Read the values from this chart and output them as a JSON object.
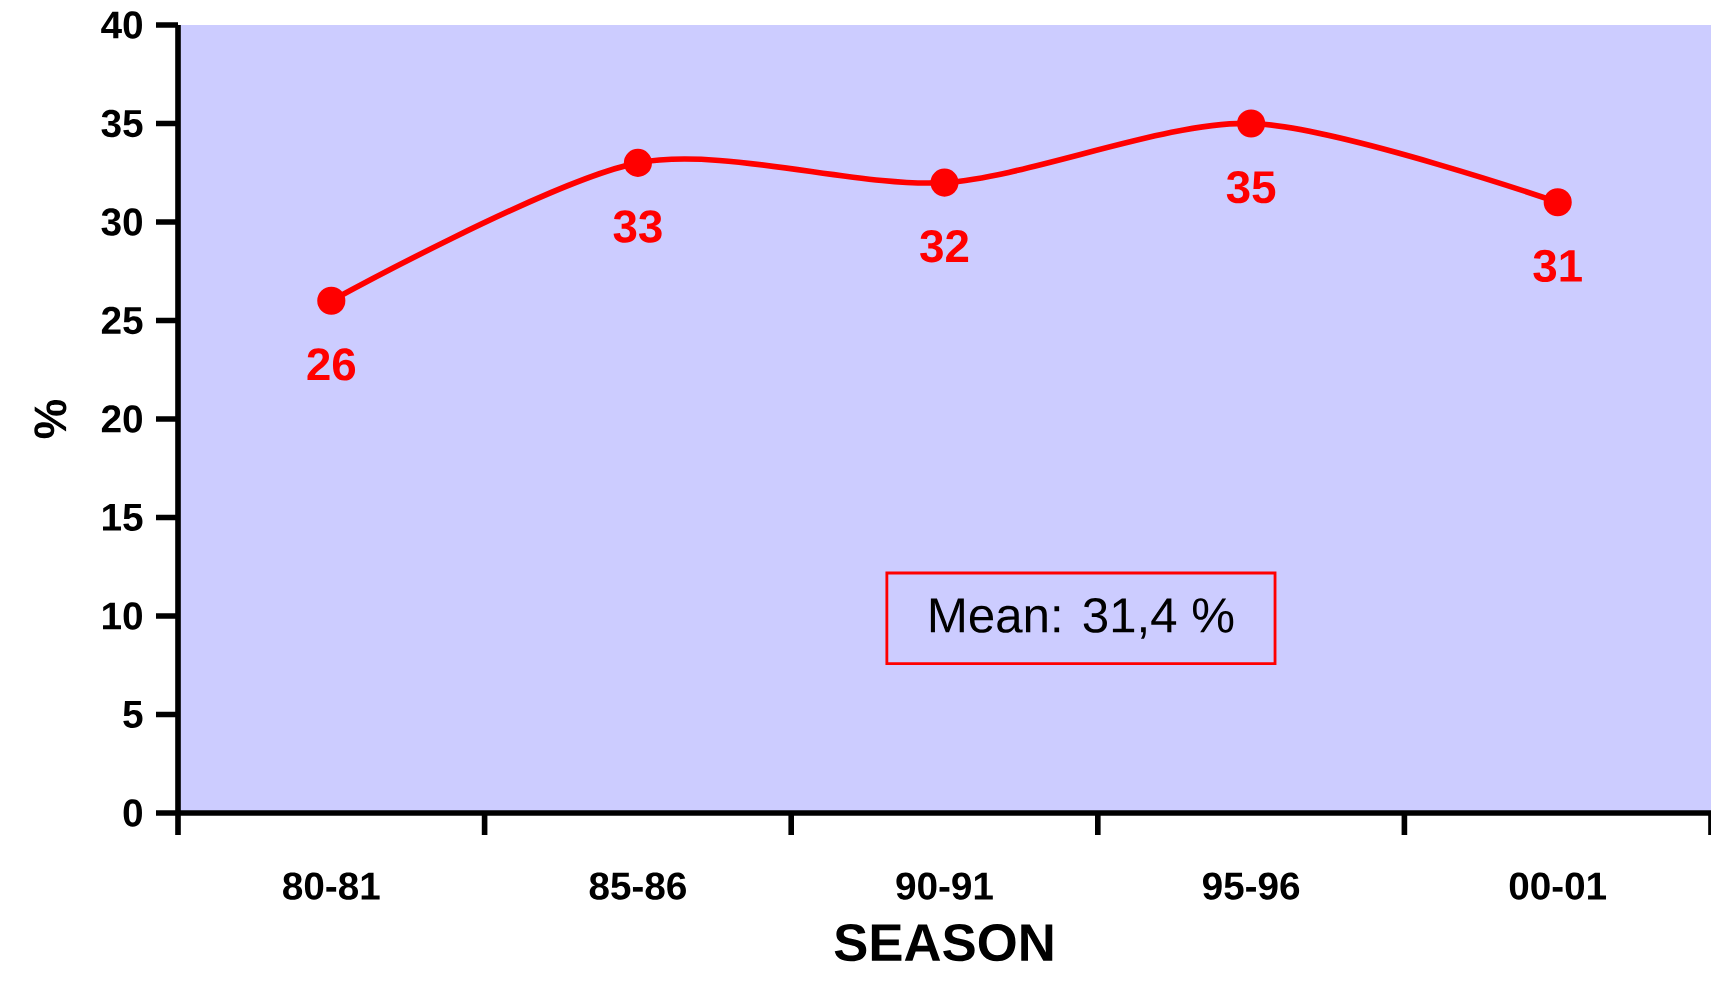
{
  "chart_data": {
    "type": "line",
    "xlabel": "SEASON",
    "ylabel": "%",
    "categories": [
      "80-81",
      "85-86",
      "90-91",
      "95-96",
      "00-01"
    ],
    "values": [
      26,
      33,
      32,
      35,
      31
    ],
    "color": "#ff0000",
    "ylim": [
      0,
      40
    ],
    "yticks": [
      0,
      5,
      10,
      15,
      20,
      25,
      30,
      35,
      40
    ],
    "marker": "circle",
    "line_style": "solid",
    "data_labels": true,
    "annotations": [
      "Mean: 31,4 %"
    ]
  }
}
